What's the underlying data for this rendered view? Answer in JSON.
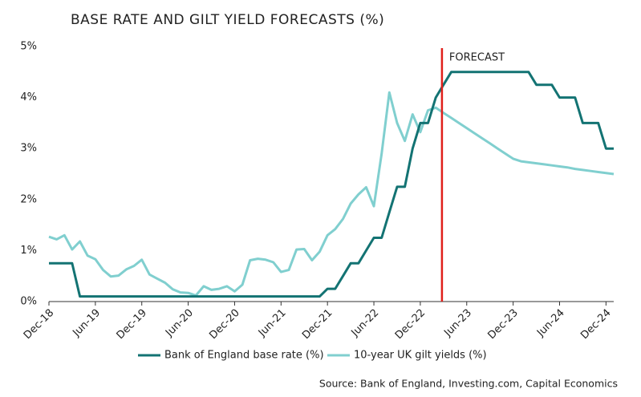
{
  "chart_data": {
    "type": "line",
    "title": "BASE RATE AND GILT YIELD FORECASTS (%)",
    "source": "Source: Bank of England, Investing.com, Capital Economics",
    "categories": [
      "Dec-18",
      null,
      null,
      null,
      null,
      null,
      "Jun-19",
      null,
      null,
      null,
      null,
      null,
      "Dec-19",
      null,
      null,
      null,
      null,
      null,
      "Jun-20",
      null,
      null,
      null,
      null,
      null,
      "Dec-20",
      null,
      null,
      null,
      null,
      null,
      "Jun-21",
      null,
      null,
      null,
      null,
      null,
      "Dec-21",
      null,
      null,
      null,
      null,
      null,
      "Jun-22",
      null,
      null,
      null,
      null,
      null,
      "Dec-22",
      null,
      null,
      null,
      null,
      null,
      "Jun-23",
      null,
      null,
      null,
      null,
      null,
      "Dec-23",
      null,
      null,
      null,
      null,
      null,
      "Jun-24",
      null,
      null,
      null,
      null,
      null,
      "Dec-24",
      null
    ],
    "series": [
      {
        "name": "Bank of England base rate (%)",
        "color": "#137373",
        "values": [
          0.75,
          0.75,
          0.75,
          0.75,
          0.1,
          0.1,
          0.1,
          0.1,
          0.1,
          0.1,
          0.1,
          0.1,
          0.1,
          0.1,
          0.1,
          0.1,
          0.1,
          0.1,
          0.1,
          0.1,
          0.1,
          0.1,
          0.1,
          0.1,
          0.1,
          0.1,
          0.1,
          0.1,
          0.1,
          0.1,
          0.1,
          0.1,
          0.1,
          0.1,
          0.1,
          0.1,
          0.25,
          0.25,
          0.5,
          0.75,
          0.75,
          1.0,
          1.25,
          1.25,
          1.75,
          2.25,
          2.25,
          3.0,
          3.5,
          3.5,
          4.0,
          4.25,
          4.5,
          4.5,
          4.5,
          4.5,
          4.5,
          4.5,
          4.5,
          4.5,
          4.5,
          4.5,
          4.5,
          4.25,
          4.25,
          4.25,
          4.0,
          4.0,
          4.0,
          3.5,
          3.5,
          3.5,
          3.0,
          3.0
        ]
      },
      {
        "name": "10-year UK gilt yields (%)",
        "color": "#80cfcf",
        "values": [
          1.27,
          1.22,
          1.3,
          1.02,
          1.18,
          0.9,
          0.83,
          0.62,
          0.49,
          0.51,
          0.63,
          0.7,
          0.82,
          0.53,
          0.45,
          0.37,
          0.24,
          0.18,
          0.17,
          0.12,
          0.3,
          0.23,
          0.25,
          0.3,
          0.2,
          0.33,
          0.81,
          0.84,
          0.82,
          0.77,
          0.58,
          0.62,
          1.02,
          1.03,
          0.81,
          0.98,
          1.3,
          1.42,
          1.62,
          1.92,
          2.1,
          2.24,
          1.87,
          2.9,
          4.1,
          3.5,
          3.15,
          3.67,
          3.32,
          3.75,
          3.8,
          3.7,
          3.6,
          3.5,
          3.4,
          3.3,
          3.2,
          3.1,
          3.0,
          2.9,
          2.8,
          2.75,
          2.73,
          2.71,
          2.69,
          2.67,
          2.65,
          2.63,
          2.6,
          2.58,
          2.56,
          2.54,
          2.52,
          2.5
        ]
      }
    ],
    "forecast": {
      "label": "FORECAST",
      "index": 50.8,
      "color": "#e0201b"
    },
    "ylim": [
      0,
      5
    ],
    "yticks": [
      {
        "value": 0,
        "label": "0%"
      },
      {
        "value": 1,
        "label": "1%"
      },
      {
        "value": 2,
        "label": "2%"
      },
      {
        "value": 3,
        "label": "3%"
      },
      {
        "value": 4,
        "label": "4%"
      },
      {
        "value": 5,
        "label": "5%"
      }
    ],
    "grid": false
  }
}
